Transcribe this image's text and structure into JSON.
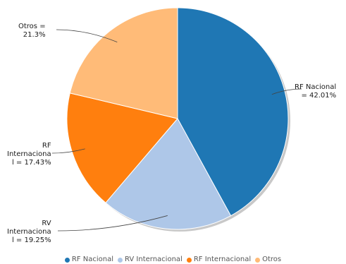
{
  "chart_data": {
    "type": "pie",
    "slices": [
      {
        "name": "RF Nacional",
        "value": 42.01,
        "color": "#1f77b4",
        "label": "RF Nacional\n= 42.01%"
      },
      {
        "name": "RV Internacional",
        "value": 19.25,
        "color": "#aec7e8",
        "label": "RV\nInternaciona\nl = 19.25%"
      },
      {
        "name": "RF Internacional",
        "value": 17.43,
        "color": "#ff7f0e",
        "label": "RF\nInternaciona\nl = 17.43%"
      },
      {
        "name": "Otros",
        "value": 21.3,
        "color": "#ffbb78",
        "label": "Otros =\n21.3%"
      }
    ],
    "start_angle_deg": 0,
    "direction": "clockwise",
    "legend": {
      "position": "bottom",
      "items": [
        "RF Nacional",
        "RV Internacional",
        "RF Internacional",
        "Otros"
      ]
    }
  }
}
